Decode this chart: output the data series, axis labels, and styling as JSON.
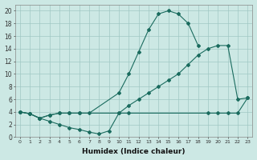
{
  "xlabel": "Humidex (Indice chaleur)",
  "bg_color": "#cce8e4",
  "line_color": "#1a6b5e",
  "grid_color": "#a0c8c4",
  "xlim": [
    -0.5,
    23.5
  ],
  "ylim": [
    0,
    21
  ],
  "xtick_labels": [
    "0",
    "1",
    "2",
    "3",
    "4",
    "5",
    "6",
    "7",
    "8",
    "9",
    "10",
    "11",
    "12",
    "13",
    "14",
    "15",
    "16",
    "17",
    "18",
    "19",
    "20",
    "21",
    "22",
    "23"
  ],
  "xtick_vals": [
    0,
    1,
    2,
    3,
    4,
    5,
    6,
    7,
    8,
    9,
    10,
    11,
    12,
    13,
    14,
    15,
    16,
    17,
    18,
    19,
    20,
    21,
    22,
    23
  ],
  "ytick_vals": [
    0,
    2,
    4,
    6,
    8,
    10,
    12,
    14,
    16,
    18,
    20
  ],
  "series1_x": [
    0,
    1,
    2,
    3,
    4,
    5,
    6,
    7,
    10,
    11,
    12,
    13,
    14,
    15,
    16,
    17,
    18
  ],
  "series1_y": [
    4,
    3.7,
    3.0,
    3.5,
    3.8,
    3.8,
    3.8,
    3.8,
    7.0,
    10.0,
    13.5,
    17.0,
    19.5,
    20.0,
    19.5,
    18.0,
    14.5
  ],
  "series2_x": [
    0,
    1,
    2,
    3,
    4,
    5,
    6,
    10,
    11,
    12,
    13,
    14,
    15,
    16,
    17,
    18,
    19,
    20,
    21,
    22,
    23
  ],
  "series2_y": [
    4,
    3.7,
    3.0,
    3.5,
    3.8,
    3.8,
    3.8,
    3.8,
    5.0,
    6.0,
    7.0,
    8.0,
    9.0,
    10.0,
    11.5,
    13.0,
    14.0,
    14.5,
    14.5,
    6.0,
    6.2
  ],
  "series3_x": [
    0,
    1,
    2,
    3,
    4,
    5,
    6,
    7,
    8,
    9,
    10,
    11,
    19,
    20,
    21,
    22,
    23
  ],
  "series3_y": [
    4,
    3.7,
    3.0,
    2.5,
    2.0,
    1.5,
    1.2,
    0.8,
    0.5,
    1.0,
    3.8,
    3.8,
    3.8,
    3.8,
    3.8,
    3.8,
    6.2
  ]
}
